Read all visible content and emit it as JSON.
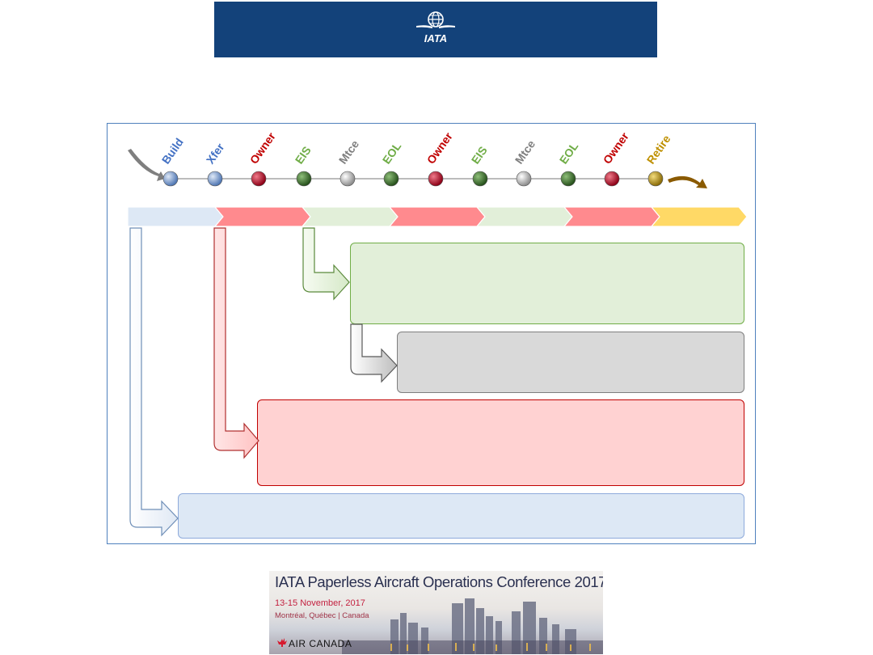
{
  "header": {
    "logo_text": "IATA",
    "brand_color": "#13427a"
  },
  "timeline": {
    "milestones": [
      {
        "label": "Build",
        "color": "#4472c4",
        "dot": "#6f93c7"
      },
      {
        "label": "Xfer",
        "color": "#4472c4",
        "dot": "#6f93c7"
      },
      {
        "label": "Owner",
        "color": "#c00000",
        "dot": "#b0051f"
      },
      {
        "label": "EIS",
        "color": "#70ad47",
        "dot": "#3d6b2c"
      },
      {
        "label": "Mtce",
        "color": "#7f7f7f",
        "dot": "#bdbdbd"
      },
      {
        "label": "EOL",
        "color": "#70ad47",
        "dot": "#3d6b2c"
      },
      {
        "label": "Owner",
        "color": "#c00000",
        "dot": "#b0051f"
      },
      {
        "label": "EIS",
        "color": "#70ad47",
        "dot": "#3d6b2c"
      },
      {
        "label": "Mtce",
        "color": "#7f7f7f",
        "dot": "#bdbdbd"
      },
      {
        "label": "EOL",
        "color": "#70ad47",
        "dot": "#3d6b2c"
      },
      {
        "label": "Owner",
        "color": "#c00000",
        "dot": "#b0051f"
      },
      {
        "label": "Retire",
        "color": "#bf9000",
        "dot": "#a88a1f"
      }
    ],
    "phases": [
      {
        "phase": "build",
        "color": "#dde8f5"
      },
      {
        "phase": "owner",
        "color": "#ff8a8e"
      },
      {
        "phase": "eis",
        "color": "#e2efd9"
      },
      {
        "phase": "owner",
        "color": "#ff8a8e"
      },
      {
        "phase": "eis",
        "color": "#e2efd9"
      },
      {
        "phase": "owner",
        "color": "#ff8a8e"
      },
      {
        "phase": "retire",
        "color": "#ffd966"
      }
    ]
  },
  "conference": {
    "title": "IATA Paperless Aircraft Operations Conference 2017",
    "dates": "13-15 November, 2017",
    "location": "Montréal, Québec | Canada",
    "sponsor": "AIR CANADA"
  }
}
